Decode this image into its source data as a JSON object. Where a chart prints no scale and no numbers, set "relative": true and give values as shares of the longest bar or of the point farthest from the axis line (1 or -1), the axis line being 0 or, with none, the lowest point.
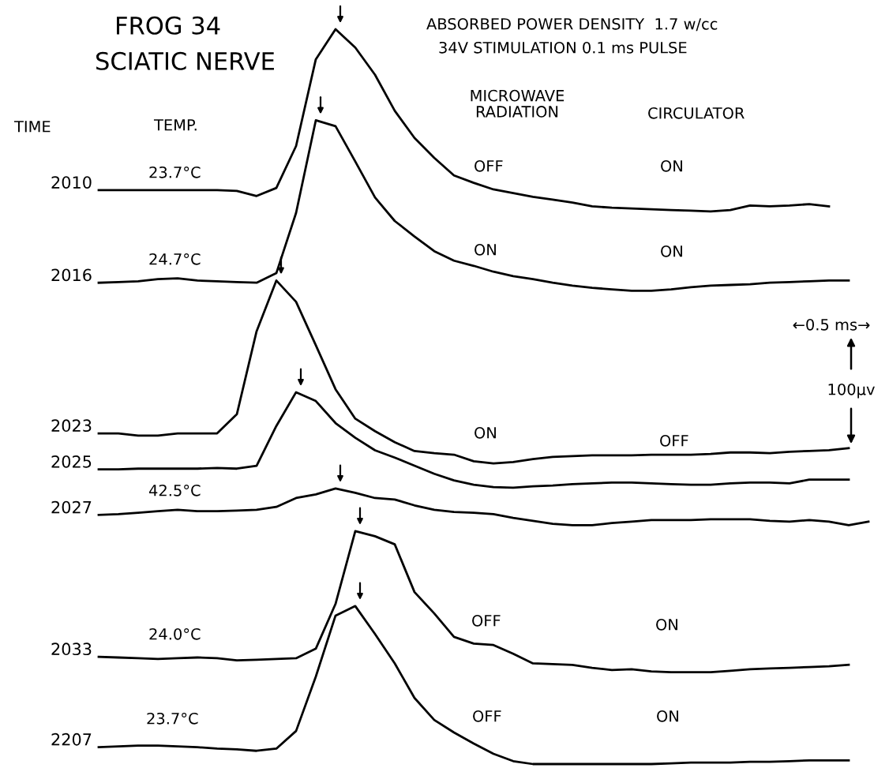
{
  "chart_data": {
    "type": "line",
    "title": "FROG 34",
    "subtitle": "SCIATIC NERVE",
    "relative": true,
    "line_style": "solid",
    "categories": [
      null,
      null,
      null,
      null,
      null,
      null,
      null,
      null,
      null,
      null,
      null,
      null,
      null,
      null,
      null,
      null,
      null,
      null,
      null,
      null,
      null,
      null,
      null,
      null,
      null,
      null,
      null,
      null,
      null,
      null,
      null,
      null,
      null,
      null,
      null,
      null,
      null,
      null,
      null,
      null
    ],
    "series": [
      {
        "name": "2010",
        "color": "#000000",
        "values": [
          0.781,
          0.781,
          0.781,
          0.781,
          0.781,
          0.781,
          0.781,
          0.78,
          0.773,
          0.784,
          0.841,
          0.959,
          1.0,
          0.975,
          0.938,
          0.889,
          0.852,
          0.825,
          0.801,
          0.791,
          0.782,
          0.777,
          0.772,
          0.768,
          0.764,
          0.759,
          0.757,
          0.756,
          0.755,
          0.754,
          0.753,
          0.752,
          0.754,
          0.76,
          0.759,
          0.76,
          0.762,
          0.759,
          null,
          null
        ]
      },
      {
        "name": "2016",
        "color": "#000000",
        "values": [
          0.655,
          0.656,
          0.657,
          0.66,
          0.661,
          0.658,
          0.657,
          0.656,
          0.655,
          0.668,
          0.75,
          0.876,
          0.868,
          0.82,
          0.771,
          0.739,
          0.718,
          0.698,
          0.685,
          0.678,
          0.67,
          0.664,
          0.66,
          0.655,
          0.651,
          0.648,
          0.646,
          0.644,
          0.644,
          0.646,
          0.649,
          0.651,
          0.652,
          0.653,
          0.655,
          0.656,
          0.657,
          0.658,
          0.658,
          null
        ]
      },
      {
        "name": "2023",
        "color": "#000000",
        "values": [
          0.45,
          0.45,
          0.447,
          0.447,
          0.45,
          0.45,
          0.45,
          0.476,
          0.589,
          0.658,
          0.629,
          0.57,
          0.51,
          0.47,
          0.453,
          0.438,
          0.426,
          0.423,
          0.421,
          0.412,
          0.409,
          0.411,
          0.415,
          0.418,
          0.419,
          0.42,
          0.42,
          0.42,
          0.421,
          0.421,
          0.421,
          0.422,
          0.424,
          0.424,
          0.423,
          0.425,
          0.426,
          0.427,
          0.43,
          null
        ]
      },
      {
        "name": "2025",
        "color": "#000000",
        "values": [
          0.401,
          0.401,
          0.402,
          0.402,
          0.402,
          0.402,
          0.403,
          0.402,
          0.406,
          0.46,
          0.506,
          0.494,
          0.464,
          0.444,
          0.427,
          0.417,
          0.406,
          0.395,
          0.386,
          0.38,
          0.377,
          0.376,
          0.378,
          0.379,
          0.381,
          0.382,
          0.383,
          0.383,
          0.382,
          0.381,
          0.38,
          0.38,
          0.382,
          0.383,
          0.383,
          0.382,
          0.387,
          0.387,
          0.387,
          null
        ]
      },
      {
        "name": "2027",
        "color": "#000000",
        "values": [
          0.339,
          0.34,
          0.342,
          0.344,
          0.346,
          0.344,
          0.344,
          0.345,
          0.346,
          0.35,
          0.362,
          0.367,
          0.375,
          0.369,
          0.362,
          0.36,
          0.352,
          0.346,
          0.343,
          0.342,
          0.34,
          0.335,
          0.331,
          0.327,
          0.325,
          0.325,
          0.328,
          0.33,
          0.332,
          0.332,
          0.332,
          0.333,
          0.333,
          0.333,
          0.331,
          0.33,
          0.332,
          0.33,
          0.325,
          0.33
        ]
      },
      {
        "name": "2033",
        "color": "#000000",
        "values": [
          0.146,
          0.145,
          0.144,
          0.143,
          0.144,
          0.145,
          0.144,
          0.141,
          0.142,
          0.143,
          0.144,
          0.157,
          0.218,
          0.317,
          0.31,
          0.299,
          0.234,
          0.205,
          0.173,
          0.164,
          0.162,
          0.15,
          0.137,
          0.136,
          0.135,
          0.131,
          0.128,
          0.129,
          0.126,
          0.125,
          0.125,
          0.125,
          0.127,
          0.129,
          0.13,
          0.131,
          0.132,
          0.133,
          0.135,
          null
        ]
      },
      {
        "name": "2207",
        "color": "#000000",
        "values": [
          0.023,
          0.024,
          0.025,
          0.025,
          0.024,
          0.023,
          0.021,
          0.02,
          0.018,
          0.021,
          0.045,
          0.119,
          0.202,
          0.215,
          0.177,
          0.137,
          0.09,
          0.06,
          0.043,
          0.028,
          0.014,
          0.004,
          0.0,
          0.0,
          0.0,
          0.0,
          0.0,
          0.0,
          0.0,
          0.001,
          0.002,
          0.002,
          0.002,
          0.003,
          0.003,
          0.004,
          0.005,
          0.005,
          0.005,
          null
        ]
      }
    ],
    "annotations": [
      "ABSORBED POWER DENSITY  1.7 w/cc",
      "34V STIMULATION 0.1 ms PULSE",
      "TIME",
      "TEMP.",
      "MICROWAVE\nRADIATION",
      "CIRCULATOR",
      "23.7°C",
      "OFF",
      "ON",
      "24.7°C",
      "ON",
      "ON",
      "ON",
      "OFF",
      "42.5°C",
      "24.0°C",
      "OFF",
      "ON",
      "23.7°C",
      "OFF",
      "ON",
      "←0.5 ms→",
      "100µv"
    ]
  }
}
